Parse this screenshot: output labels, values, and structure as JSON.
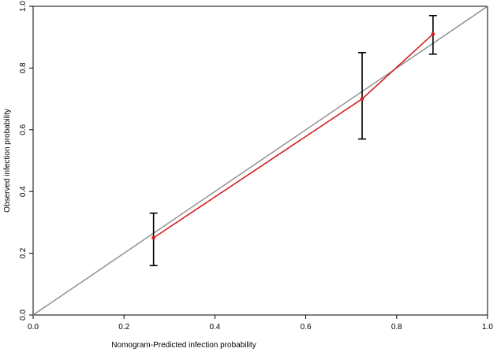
{
  "chart_data": {
    "type": "line",
    "title": "",
    "xlabel": "Nomogram-Predicted infection probability",
    "ylabel": "Observed infection probability",
    "xlim": [
      0.0,
      1.0
    ],
    "ylim": [
      0.0,
      1.0
    ],
    "x_ticks": [
      "0.0",
      "0.2",
      "0.4",
      "0.6",
      "0.8",
      "1.0"
    ],
    "y_ticks": [
      "0.0",
      "0.2",
      "0.4",
      "0.6",
      "0.8",
      "1.0"
    ],
    "grid": false,
    "reference_line": {
      "x": [
        0.0,
        1.0
      ],
      "y": [
        0.0,
        1.0
      ],
      "color": "#8c8c8c"
    },
    "series": [
      {
        "x": [
          0.265,
          0.724,
          0.88
        ],
        "y": [
          0.25,
          0.7,
          0.91
        ],
        "ci_lower": [
          0.16,
          0.57,
          0.845
        ],
        "ci_upper": [
          0.33,
          0.85,
          0.97
        ],
        "color": "#d42020",
        "errorbar_color": "#000000"
      }
    ]
  }
}
